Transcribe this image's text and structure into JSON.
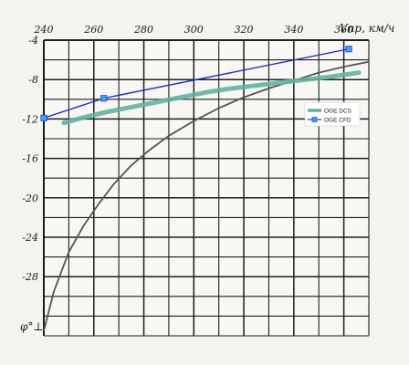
{
  "chart_data": {
    "type": "line",
    "x_axis": {
      "label": "Vпр, км/ч",
      "range": [
        240,
        370
      ],
      "ticks": [
        240,
        260,
        280,
        300,
        320,
        340,
        360
      ],
      "tick_labels": [
        "240",
        "260",
        "280",
        "300",
        "320",
        "340",
        "360"
      ],
      "minor_step": 10,
      "position": "top"
    },
    "y_axis": {
      "label": "φ°⊥",
      "range": [
        -34,
        -4
      ],
      "ticks": [
        -4,
        -8,
        -12,
        -16,
        -20,
        -24,
        -28
      ],
      "tick_labels": [
        "-4",
        "-8",
        "-12",
        "-16",
        "-20",
        "-24",
        "-28"
      ],
      "minor_step": 2
    },
    "grid": true,
    "legend": {
      "placement": "right",
      "entries": [
        "OGE DCS",
        "OGE CFD"
      ]
    },
    "series": [
      {
        "name": "OGE DCS",
        "color": "#5fb3a3",
        "style": "thick-line",
        "x": [
          248,
          255,
          265,
          275,
          285,
          295,
          305,
          315,
          325,
          335,
          345,
          355,
          366
        ],
        "y": [
          -12.4,
          -11.9,
          -11.3,
          -10.8,
          -10.3,
          -9.8,
          -9.3,
          -8.9,
          -8.6,
          -8.3,
          -8.0,
          -7.7,
          -7.3
        ]
      },
      {
        "name": "OGE CFD",
        "color": "#1f2fd6",
        "style": "line-with-square-markers",
        "x": [
          240,
          264,
          362
        ],
        "y": [
          -11.9,
          -9.9,
          -4.9
        ]
      },
      {
        "name": "",
        "color": "#555555",
        "style": "thin-line",
        "x": [
          240,
          244,
          250,
          256,
          262,
          268,
          275,
          282,
          290,
          300,
          310,
          320,
          330,
          340,
          350,
          360,
          370
        ],
        "y": [
          -33.5,
          -29.5,
          -25.5,
          -22.8,
          -20.6,
          -18.6,
          -16.7,
          -15.2,
          -13.7,
          -12.2,
          -10.9,
          -9.8,
          -8.9,
          -8.1,
          -7.3,
          -6.7,
          -6.2
        ]
      }
    ]
  }
}
